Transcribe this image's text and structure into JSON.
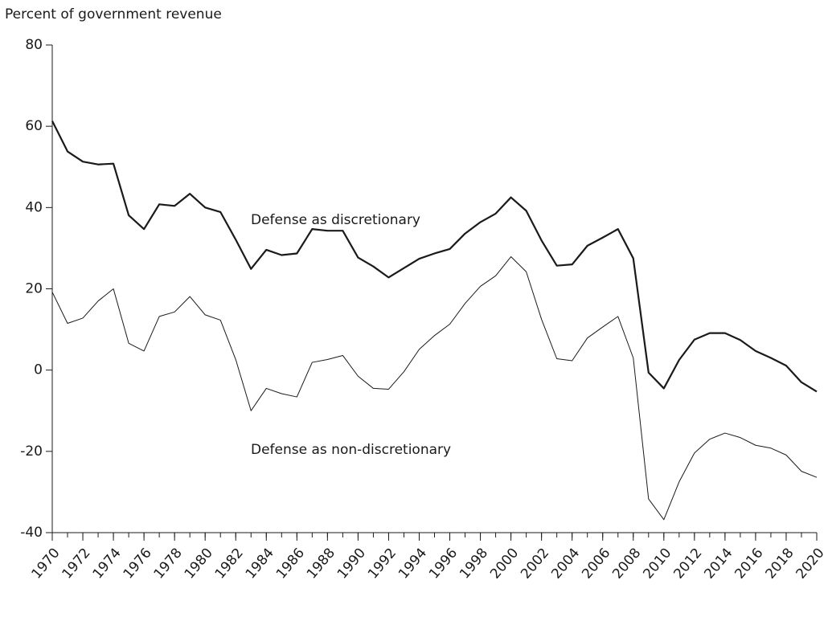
{
  "chart_data": {
    "type": "line",
    "y_label": "Percent of government revenue",
    "x": [
      1970,
      1971,
      1972,
      1973,
      1974,
      1975,
      1976,
      1977,
      1978,
      1979,
      1980,
      1981,
      1982,
      1983,
      1984,
      1985,
      1986,
      1987,
      1988,
      1989,
      1990,
      1991,
      1992,
      1993,
      1994,
      1995,
      1996,
      1997,
      1998,
      1999,
      2000,
      2001,
      2002,
      2003,
      2004,
      2005,
      2006,
      2007,
      2008,
      2009,
      2010,
      2011,
      2012,
      2013,
      2014,
      2015,
      2016,
      2017,
      2018,
      2019,
      2020
    ],
    "series": [
      {
        "name": "Defense as discretionary",
        "color": "#1a1a1a",
        "width": 2.2,
        "values": [
          61.3,
          53.8,
          51.3,
          50.6,
          50.8,
          38.1,
          34.7,
          40.8,
          40.4,
          43.4,
          40,
          38.9,
          32.1,
          24.9,
          29.6,
          28.3,
          28.7,
          34.7,
          34.3,
          34.3,
          27.7,
          25.5,
          22.8,
          25.1,
          27.4,
          28.7,
          29.8,
          33.6,
          36.4,
          38.5,
          42.5,
          39.2,
          31.9,
          25.7,
          26,
          30.6,
          32.6,
          34.7,
          27.5,
          -0.6,
          -4.5,
          2.5,
          7.5,
          9.1,
          9.1,
          7.4,
          4.7,
          3,
          1.1,
          -3,
          -5.3
        ]
      },
      {
        "name": "Defense as non-discretionary",
        "color": "#1a1a1a",
        "width": 1,
        "values": [
          19.2,
          11.5,
          12.8,
          17,
          20,
          6.6,
          4.7,
          13.2,
          14.3,
          18.1,
          13.6,
          12.3,
          2.6,
          -10,
          -4.5,
          -5.8,
          -6.6,
          1.9,
          2.6,
          3.6,
          -1.5,
          -4.5,
          -4.7,
          -0.4,
          5.1,
          8.5,
          11.3,
          16.4,
          20.6,
          23.2,
          27.9,
          24.2,
          12.5,
          2.8,
          2.3,
          7.9,
          10.6,
          13.2,
          3,
          -31.7,
          -36.8,
          -27.5,
          -20.4,
          -17,
          -15.5,
          -16.6,
          -18.5,
          -19.2,
          -20.9,
          -24.9,
          -26.4
        ]
      }
    ],
    "xlim": [
      1970,
      2020
    ],
    "xticks": [
      1970,
      1972,
      1974,
      1976,
      1978,
      1980,
      1982,
      1984,
      1986,
      1988,
      1990,
      1992,
      1994,
      1996,
      1998,
      2000,
      2002,
      2004,
      2006,
      2008,
      2010,
      2012,
      2014,
      2016,
      2018,
      2020
    ],
    "ylim": [
      -40,
      80
    ],
    "yticks": [
      -40,
      -20,
      0,
      20,
      40,
      60,
      80
    ],
    "grid": false
  }
}
